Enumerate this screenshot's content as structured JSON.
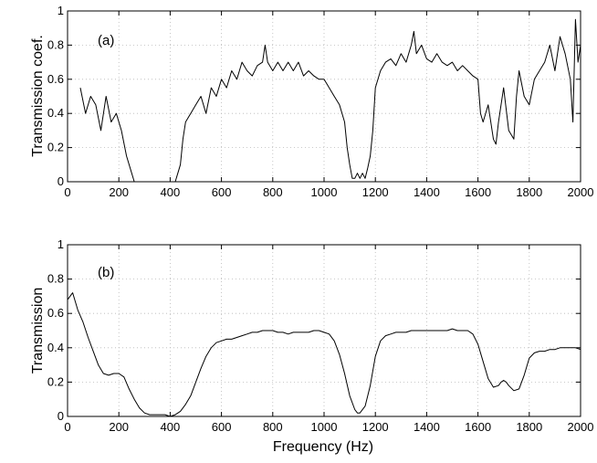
{
  "chart_data": [
    {
      "type": "line",
      "panel_label": "(a)",
      "xlabel": "",
      "ylabel": "Transmission coef.",
      "xlim": [
        0,
        2000
      ],
      "ylim": [
        0,
        1
      ],
      "xticks": [
        0,
        200,
        400,
        600,
        800,
        1000,
        1200,
        1400,
        1600,
        1800,
        2000
      ],
      "yticks": [
        0,
        0.2,
        0.4,
        0.6,
        0.8,
        1
      ],
      "ytick_labels": [
        "0",
        "0.2",
        "0.4",
        "0.6",
        "0.8",
        "1"
      ],
      "grid": true,
      "line_color": "#000000",
      "series": [
        {
          "x": [
            50,
            70,
            90,
            110,
            130,
            150,
            170,
            190,
            210,
            230,
            250,
            260,
            270,
            300,
            350,
            400,
            420,
            430,
            440,
            450,
            460,
            480,
            500,
            520,
            540,
            560,
            580,
            600,
            620,
            640,
            660,
            680,
            700,
            720,
            740,
            760,
            770,
            780,
            800,
            820,
            840,
            860,
            880,
            900,
            920,
            940,
            960,
            980,
            1000,
            1020,
            1040,
            1060,
            1080,
            1090,
            1100,
            1110,
            1120,
            1130,
            1140,
            1150,
            1160,
            1170,
            1180,
            1190,
            1200,
            1220,
            1240,
            1260,
            1280,
            1300,
            1320,
            1340,
            1350,
            1360,
            1380,
            1400,
            1420,
            1440,
            1460,
            1480,
            1500,
            1520,
            1540,
            1560,
            1580,
            1600,
            1610,
            1620,
            1640,
            1660,
            1670,
            1680,
            1700,
            1720,
            1740,
            1750,
            1760,
            1780,
            1800,
            1820,
            1840,
            1860,
            1880,
            1900,
            1920,
            1940,
            1960,
            1970,
            1980,
            1990,
            2000
          ],
          "y": [
            0.55,
            0.4,
            0.5,
            0.45,
            0.3,
            0.5,
            0.35,
            0.4,
            0.3,
            0.15,
            0.05,
            0,
            0,
            0,
            0,
            0,
            0,
            0.05,
            0.1,
            0.25,
            0.35,
            0.4,
            0.45,
            0.5,
            0.4,
            0.55,
            0.5,
            0.6,
            0.55,
            0.65,
            0.6,
            0.7,
            0.65,
            0.62,
            0.68,
            0.7,
            0.8,
            0.7,
            0.65,
            0.7,
            0.65,
            0.7,
            0.65,
            0.7,
            0.62,
            0.65,
            0.62,
            0.6,
            0.6,
            0.55,
            0.5,
            0.45,
            0.35,
            0.2,
            0.1,
            0.02,
            0.02,
            0.05,
            0.02,
            0.05,
            0.02,
            0.08,
            0.15,
            0.3,
            0.55,
            0.65,
            0.7,
            0.72,
            0.68,
            0.75,
            0.7,
            0.8,
            0.88,
            0.75,
            0.8,
            0.72,
            0.7,
            0.75,
            0.7,
            0.68,
            0.7,
            0.65,
            0.68,
            0.65,
            0.62,
            0.6,
            0.4,
            0.35,
            0.45,
            0.25,
            0.22,
            0.35,
            0.55,
            0.3,
            0.25,
            0.5,
            0.65,
            0.5,
            0.45,
            0.6,
            0.65,
            0.7,
            0.8,
            0.65,
            0.85,
            0.75,
            0.6,
            0.35,
            0.95,
            0.7,
            0.8
          ]
        }
      ]
    },
    {
      "type": "line",
      "panel_label": "(b)",
      "xlabel": "Frequency (Hz)",
      "ylabel": "Transmission",
      "xlim": [
        0,
        2000
      ],
      "ylim": [
        0,
        1
      ],
      "xticks": [
        0,
        200,
        400,
        600,
        800,
        1000,
        1200,
        1400,
        1600,
        1800,
        2000
      ],
      "yticks": [
        0,
        0.2,
        0.4,
        0.6,
        0.8,
        1
      ],
      "ytick_labels": [
        "0",
        "0.2",
        "0.4",
        "0.6",
        "0.8",
        "1"
      ],
      "grid": true,
      "line_color": "#000000",
      "series": [
        {
          "x": [
            0,
            20,
            40,
            60,
            80,
            100,
            120,
            140,
            160,
            180,
            200,
            220,
            240,
            260,
            280,
            300,
            320,
            340,
            360,
            380,
            400,
            420,
            440,
            460,
            480,
            500,
            520,
            540,
            560,
            580,
            600,
            620,
            640,
            660,
            680,
            700,
            720,
            740,
            760,
            780,
            800,
            820,
            840,
            860,
            880,
            900,
            920,
            940,
            960,
            980,
            1000,
            1020,
            1040,
            1060,
            1080,
            1100,
            1120,
            1130,
            1140,
            1160,
            1180,
            1200,
            1220,
            1240,
            1260,
            1280,
            1300,
            1320,
            1340,
            1360,
            1380,
            1400,
            1420,
            1440,
            1460,
            1480,
            1500,
            1520,
            1540,
            1560,
            1580,
            1600,
            1620,
            1640,
            1660,
            1680,
            1690,
            1700,
            1710,
            1720,
            1740,
            1760,
            1780,
            1800,
            1820,
            1840,
            1860,
            1880,
            1900,
            1920,
            1940,
            1960,
            1980,
            2000
          ],
          "y": [
            0.68,
            0.72,
            0.62,
            0.55,
            0.46,
            0.38,
            0.3,
            0.25,
            0.24,
            0.25,
            0.25,
            0.23,
            0.16,
            0.1,
            0.05,
            0.02,
            0.01,
            0.01,
            0.01,
            0.01,
            0.0,
            0.01,
            0.03,
            0.07,
            0.12,
            0.2,
            0.28,
            0.35,
            0.4,
            0.43,
            0.44,
            0.45,
            0.45,
            0.46,
            0.47,
            0.48,
            0.49,
            0.49,
            0.5,
            0.5,
            0.5,
            0.49,
            0.49,
            0.48,
            0.49,
            0.49,
            0.49,
            0.49,
            0.5,
            0.5,
            0.49,
            0.48,
            0.44,
            0.36,
            0.25,
            0.12,
            0.04,
            0.02,
            0.02,
            0.06,
            0.18,
            0.35,
            0.44,
            0.47,
            0.48,
            0.49,
            0.49,
            0.49,
            0.5,
            0.5,
            0.5,
            0.5,
            0.5,
            0.5,
            0.5,
            0.5,
            0.51,
            0.5,
            0.5,
            0.5,
            0.48,
            0.42,
            0.32,
            0.22,
            0.17,
            0.18,
            0.2,
            0.21,
            0.2,
            0.18,
            0.15,
            0.16,
            0.24,
            0.34,
            0.37,
            0.38,
            0.38,
            0.39,
            0.39,
            0.4,
            0.4,
            0.4,
            0.4,
            0.39
          ]
        }
      ]
    }
  ]
}
